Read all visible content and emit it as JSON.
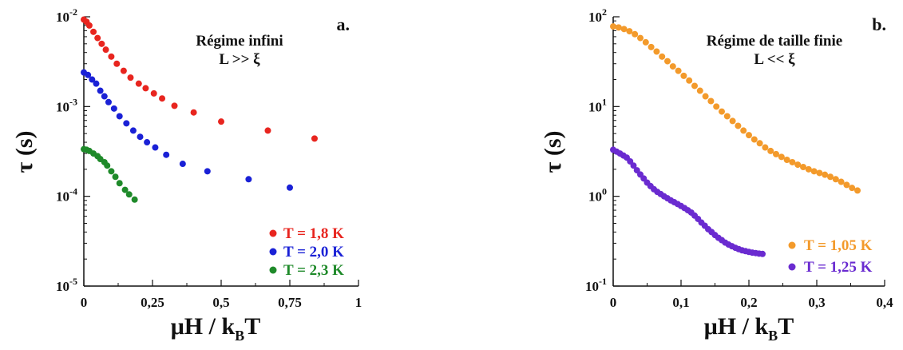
{
  "chart_data": [
    {
      "type": "scatter",
      "panel_label": "a.",
      "annotation": [
        "Régime infini",
        "L >> ξ"
      ],
      "xlabel": "μH / kBT",
      "ylabel": "τ (s)",
      "xlim": [
        0,
        1
      ],
      "ylim": [
        1e-05,
        0.01
      ],
      "yscale": "log",
      "x_ticks": [
        0,
        0.25,
        0.5,
        0.75,
        1
      ],
      "x_tick_labels": [
        "0",
        "0,25",
        "0,5",
        "0,75",
        "1"
      ],
      "y_ticks": [
        1e-05,
        0.0001,
        0.001,
        0.01
      ],
      "y_tick_labels": [
        {
          "base": "10",
          "exp": "-5"
        },
        {
          "base": "10",
          "exp": "-4"
        },
        {
          "base": "10",
          "exp": "-3"
        },
        {
          "base": "10",
          "exp": "-2"
        }
      ],
      "legend_placement": "bottom-right",
      "series": [
        {
          "name": "T = 1,8 K",
          "color": "#e8251f",
          "points": [
            [
              0.0,
              0.0093
            ],
            [
              0.01,
              0.0088
            ],
            [
              0.02,
              0.008
            ],
            [
              0.035,
              0.0068
            ],
            [
              0.05,
              0.0058
            ],
            [
              0.065,
              0.005
            ],
            [
              0.08,
              0.0043
            ],
            [
              0.1,
              0.0036
            ],
            [
              0.12,
              0.003
            ],
            [
              0.145,
              0.0025
            ],
            [
              0.17,
              0.0021
            ],
            [
              0.2,
              0.0018
            ],
            [
              0.225,
              0.0016
            ],
            [
              0.255,
              0.0014
            ],
            [
              0.285,
              0.00123
            ],
            [
              0.33,
              0.00102
            ],
            [
              0.4,
              0.00086
            ],
            [
              0.5,
              0.00068
            ],
            [
              0.67,
              0.00054
            ],
            [
              0.84,
              0.00044
            ]
          ]
        },
        {
          "name": "T = 2,0 K",
          "color": "#1a21d6",
          "points": [
            [
              0.0,
              0.0024
            ],
            [
              0.015,
              0.00225
            ],
            [
              0.03,
              0.002
            ],
            [
              0.045,
              0.0018
            ],
            [
              0.06,
              0.0015
            ],
            [
              0.075,
              0.0013
            ],
            [
              0.09,
              0.00112
            ],
            [
              0.11,
              0.00095
            ],
            [
              0.13,
              0.00078
            ],
            [
              0.155,
              0.00065
            ],
            [
              0.18,
              0.00054
            ],
            [
              0.205,
              0.00046
            ],
            [
              0.23,
              0.0004
            ],
            [
              0.26,
              0.00035
            ],
            [
              0.3,
              0.00029
            ],
            [
              0.36,
              0.00023
            ],
            [
              0.45,
              0.00019
            ],
            [
              0.6,
              0.000155
            ],
            [
              0.75,
              0.000125
            ]
          ]
        },
        {
          "name": "T = 2,3 K",
          "color": "#1f8a2a",
          "points": [
            [
              0.0,
              0.000335
            ],
            [
              0.01,
              0.00033
            ],
            [
              0.02,
              0.00032
            ],
            [
              0.035,
              0.0003
            ],
            [
              0.05,
              0.00028
            ],
            [
              0.06,
              0.00026
            ],
            [
              0.075,
              0.00024
            ],
            [
              0.085,
              0.00022
            ],
            [
              0.1,
              0.00019
            ],
            [
              0.115,
              0.000165
            ],
            [
              0.13,
              0.00014
            ],
            [
              0.15,
              0.000118
            ],
            [
              0.165,
              0.000105
            ],
            [
              0.185,
              9.2e-05
            ]
          ]
        }
      ]
    },
    {
      "type": "scatter",
      "panel_label": "b.",
      "annotation": [
        "Régime de taille finie",
        "L << ξ"
      ],
      "xlabel": "μH / kBT",
      "ylabel": "τ (s)",
      "xlim": [
        0,
        0.4
      ],
      "ylim": [
        0.1,
        100
      ],
      "yscale": "log",
      "x_ticks": [
        0,
        0.1,
        0.2,
        0.3,
        0.4
      ],
      "x_tick_labels": [
        "0",
        "0,1",
        "0,2",
        "0,3",
        "0,4"
      ],
      "y_ticks": [
        0.1,
        1,
        10,
        100
      ],
      "y_tick_labels": [
        {
          "base": "10",
          "exp": "-1"
        },
        {
          "base": "10",
          "exp": "0"
        },
        {
          "base": "10",
          "exp": "1"
        },
        {
          "base": "10",
          "exp": "2"
        }
      ],
      "legend_placement": "bottom-right",
      "series": [
        {
          "name": "T = 1,05 K",
          "color": "#f39a2b",
          "points": [
            [
              0.0,
              78
            ],
            [
              0.008,
              76
            ],
            [
              0.016,
              73
            ],
            [
              0.024,
              69
            ],
            [
              0.032,
              64
            ],
            [
              0.04,
              58
            ],
            [
              0.048,
              52
            ],
            [
              0.056,
              46
            ],
            [
              0.064,
              41
            ],
            [
              0.072,
              36
            ],
            [
              0.08,
              32
            ],
            [
              0.088,
              28
            ],
            [
              0.096,
              25
            ],
            [
              0.104,
              22
            ],
            [
              0.112,
              19.5
            ],
            [
              0.12,
              17
            ],
            [
              0.128,
              15
            ],
            [
              0.136,
              13
            ],
            [
              0.144,
              11.5
            ],
            [
              0.152,
              10
            ],
            [
              0.16,
              8.8
            ],
            [
              0.168,
              7.8
            ],
            [
              0.176,
              6.9
            ],
            [
              0.184,
              6.1
            ],
            [
              0.192,
              5.4
            ],
            [
              0.2,
              4.8
            ],
            [
              0.208,
              4.3
            ],
            [
              0.216,
              3.9
            ],
            [
              0.224,
              3.5
            ],
            [
              0.232,
              3.2
            ],
            [
              0.24,
              2.95
            ],
            [
              0.248,
              2.75
            ],
            [
              0.256,
              2.55
            ],
            [
              0.264,
              2.4
            ],
            [
              0.272,
              2.25
            ],
            [
              0.28,
              2.12
            ],
            [
              0.288,
              2.0
            ],
            [
              0.296,
              1.9
            ],
            [
              0.304,
              1.82
            ],
            [
              0.312,
              1.74
            ],
            [
              0.32,
              1.65
            ],
            [
              0.328,
              1.55
            ],
            [
              0.336,
              1.45
            ],
            [
              0.344,
              1.34
            ],
            [
              0.352,
              1.24
            ],
            [
              0.36,
              1.16
            ]
          ]
        },
        {
          "name": "T = 1,25 K",
          "color": "#6a2bd0",
          "points": [
            [
              0.0,
              3.3
            ],
            [
              0.005,
              3.15
            ],
            [
              0.01,
              3.0
            ],
            [
              0.015,
              2.85
            ],
            [
              0.02,
              2.7
            ],
            [
              0.025,
              2.45
            ],
            [
              0.03,
              2.2
            ],
            [
              0.035,
              1.95
            ],
            [
              0.04,
              1.75
            ],
            [
              0.045,
              1.58
            ],
            [
              0.05,
              1.42
            ],
            [
              0.055,
              1.3
            ],
            [
              0.06,
              1.2
            ],
            [
              0.065,
              1.12
            ],
            [
              0.07,
              1.06
            ],
            [
              0.075,
              1.0
            ],
            [
              0.08,
              0.95
            ],
            [
              0.085,
              0.9
            ],
            [
              0.09,
              0.86
            ],
            [
              0.095,
              0.82
            ],
            [
              0.1,
              0.78
            ],
            [
              0.105,
              0.74
            ],
            [
              0.11,
              0.7
            ],
            [
              0.115,
              0.66
            ],
            [
              0.12,
              0.61
            ],
            [
              0.125,
              0.56
            ],
            [
              0.13,
              0.51
            ],
            [
              0.135,
              0.47
            ],
            [
              0.14,
              0.43
            ],
            [
              0.145,
              0.4
            ],
            [
              0.15,
              0.37
            ],
            [
              0.155,
              0.345
            ],
            [
              0.16,
              0.325
            ],
            [
              0.165,
              0.305
            ],
            [
              0.17,
              0.29
            ],
            [
              0.175,
              0.278
            ],
            [
              0.18,
              0.267
            ],
            [
              0.185,
              0.258
            ],
            [
              0.19,
              0.25
            ],
            [
              0.195,
              0.245
            ],
            [
              0.2,
              0.24
            ],
            [
              0.205,
              0.236
            ],
            [
              0.21,
              0.233
            ],
            [
              0.215,
              0.23
            ],
            [
              0.22,
              0.228
            ]
          ]
        }
      ]
    }
  ]
}
